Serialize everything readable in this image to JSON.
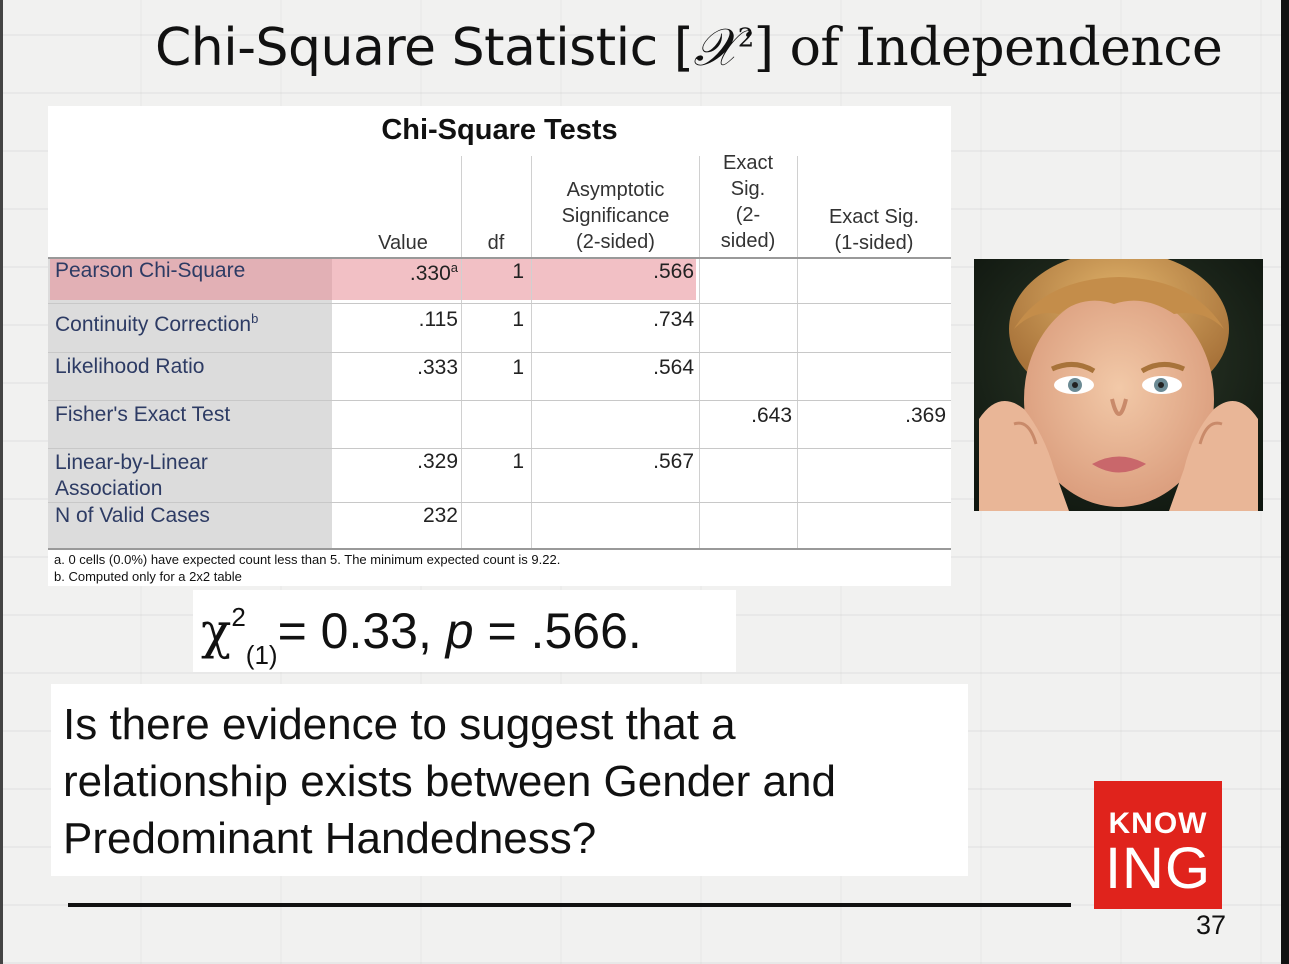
{
  "slide": {
    "title_part1": "Chi-Square Statistic [",
    "title_chi": "𝒳",
    "title_sup": "2",
    "title_part2": "] of Independence",
    "page_number": "37"
  },
  "table": {
    "title": "Chi-Square Tests",
    "headers": {
      "value": "Value",
      "df": "df",
      "asymp_line1": "Asymptotic",
      "asymp_line2": "Significance",
      "asymp_line3": "(2-sided)",
      "exact2_line1": "Exact",
      "exact2_line2": "Sig.",
      "exact2_line3": "(2-",
      "exact2_line4": "sided)",
      "exact1_line1": "Exact Sig.",
      "exact1_line2": "(1-sided)"
    },
    "rows": [
      {
        "label": "Pearson Chi-Square",
        "label_sup": "",
        "value": ".330",
        "value_sup": "a",
        "df": "1",
        "asymp": ".566",
        "exact2": "",
        "exact1": ""
      },
      {
        "label": "Continuity Correction",
        "label_sup": "b",
        "value": ".115",
        "value_sup": "",
        "df": "1",
        "asymp": ".734",
        "exact2": "",
        "exact1": ""
      },
      {
        "label": "Likelihood Ratio",
        "label_sup": "",
        "value": ".333",
        "value_sup": "",
        "df": "1",
        "asymp": ".564",
        "exact2": "",
        "exact1": ""
      },
      {
        "label": "Fisher's Exact Test",
        "label_sup": "",
        "value": "",
        "value_sup": "",
        "df": "",
        "asymp": "",
        "exact2": ".643",
        "exact1": ".369"
      },
      {
        "label_line1": "Linear-by-Linear",
        "label_line2": "Association",
        "value": ".329",
        "df": "1",
        "asymp": ".567",
        "exact2": "",
        "exact1": ""
      },
      {
        "label": "N of Valid Cases",
        "value": "232",
        "df": "",
        "asymp": "",
        "exact2": "",
        "exact1": ""
      }
    ],
    "footnote_a": "a. 0 cells (0.0%) have expected count less than 5. The minimum expected count is 9.22.",
    "footnote_b": "b. Computed only for a 2x2 table"
  },
  "formula": {
    "chi": "χ",
    "sup": "2",
    "sub": "(1)",
    "rest_a": "= 0.33, ",
    "p": "p",
    "rest_b": " = .566."
  },
  "question": {
    "line1": "Is there evidence to suggest that a",
    "line2": "relationship exists between Gender and",
    "line3": "Predominant Handedness?"
  },
  "logo": {
    "top": "KNOW",
    "bottom": "ING",
    "color": "#e0231c"
  },
  "photo": {
    "icon": "child-photo"
  }
}
